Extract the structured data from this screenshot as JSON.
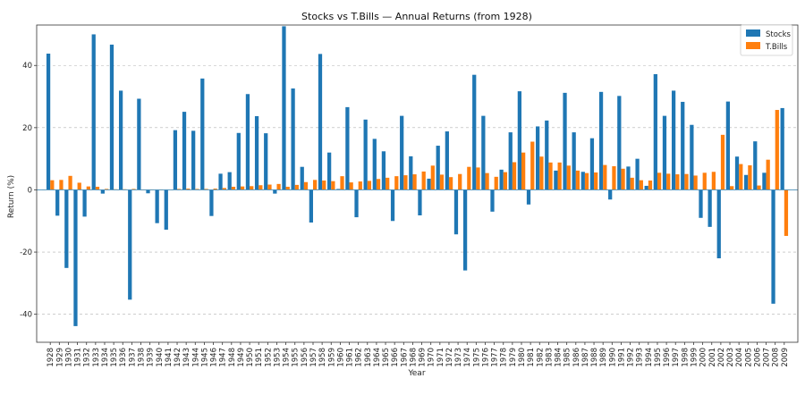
{
  "chart_data": {
    "type": "bar",
    "title": "Stocks vs T.Bills — Annual Returns (from 1928)",
    "xlabel": "Year",
    "ylabel": "Return (%)",
    "ylim": [
      -49,
      53
    ],
    "yticks": [
      -40,
      -20,
      0,
      20,
      40
    ],
    "grid": "y-dashed",
    "legend_position": "top-right",
    "categories": [
      "1928",
      "1929",
      "1930",
      "1931",
      "1932",
      "1933",
      "1934",
      "1935",
      "1936",
      "1937",
      "1938",
      "1939",
      "1940",
      "1941",
      "1942",
      "1943",
      "1944",
      "1945",
      "1946",
      "1947",
      "1948",
      "1949",
      "1950",
      "1951",
      "1952",
      "1953",
      "1954",
      "1955",
      "1956",
      "1957",
      "1958",
      "1959",
      "1960",
      "1961",
      "1962",
      "1963",
      "1964",
      "1965",
      "1966",
      "1967",
      "1968",
      "1969",
      "1970",
      "1971",
      "1972",
      "1973",
      "1974",
      "1975",
      "1976",
      "1977",
      "1978",
      "1979",
      "1980",
      "1981",
      "1982",
      "1983",
      "1984",
      "1985",
      "1986",
      "1987",
      "1988",
      "1989",
      "1990",
      "1991",
      "1992",
      "1993",
      "1994",
      "1995",
      "1996",
      "1997",
      "1998",
      "1999",
      "2000",
      "2001",
      "2002",
      "2003",
      "2004",
      "2005",
      "2006",
      "2007",
      "2008",
      "2009"
    ],
    "series": [
      {
        "name": "Stocks",
        "color": "#1f77b4",
        "values": [
          43.8,
          -8.3,
          -25.1,
          -43.8,
          -8.6,
          50.0,
          -1.2,
          46.7,
          31.9,
          -35.3,
          29.3,
          -1.1,
          -10.7,
          -12.8,
          19.2,
          25.1,
          19.0,
          35.8,
          -8.4,
          5.2,
          5.7,
          18.3,
          30.8,
          23.7,
          18.2,
          -1.2,
          52.6,
          32.6,
          7.4,
          -10.5,
          43.7,
          12.0,
          0.3,
          26.6,
          -8.8,
          22.6,
          16.4,
          12.4,
          -10.0,
          23.8,
          10.8,
          -8.2,
          3.6,
          14.2,
          18.8,
          -14.3,
          -25.9,
          37.0,
          23.8,
          -7.0,
          6.5,
          18.5,
          31.7,
          -4.7,
          20.4,
          22.3,
          6.2,
          31.2,
          18.5,
          5.8,
          16.6,
          31.5,
          -3.1,
          30.2,
          7.5,
          10.0,
          1.3,
          37.2,
          23.8,
          31.9,
          28.3,
          20.9,
          -9.0,
          -11.9,
          -22.0,
          28.4,
          10.7,
          4.8,
          15.6,
          5.5,
          -36.6,
          26.3
        ]
      },
      {
        "name": "T.Bills",
        "color": "#ff7f0e",
        "values": [
          3.1,
          3.2,
          4.5,
          2.3,
          1.1,
          1.0,
          0.3,
          0.2,
          0.2,
          0.3,
          0.0,
          0.0,
          0.0,
          0.1,
          0.3,
          0.4,
          0.3,
          0.3,
          0.4,
          0.6,
          1.0,
          1.1,
          1.2,
          1.5,
          1.7,
          1.9,
          1.0,
          1.6,
          2.5,
          3.2,
          3.0,
          2.8,
          4.4,
          2.4,
          2.7,
          2.9,
          3.5,
          3.9,
          4.4,
          4.7,
          5.0,
          5.9,
          7.8,
          4.9,
          4.1,
          5.1,
          7.4,
          7.2,
          5.4,
          4.2,
          5.7,
          8.9,
          12.0,
          15.5,
          10.7,
          8.8,
          8.8,
          7.8,
          6.2,
          5.4,
          5.6,
          8.0,
          7.6,
          6.8,
          3.9,
          3.1,
          3.0,
          5.5,
          5.2,
          5.0,
          5.1,
          4.6,
          5.5,
          5.8,
          17.7,
          1.2,
          8.3,
          7.9,
          1.4,
          9.7,
          25.7,
          -14.8
        ]
      }
    ]
  }
}
